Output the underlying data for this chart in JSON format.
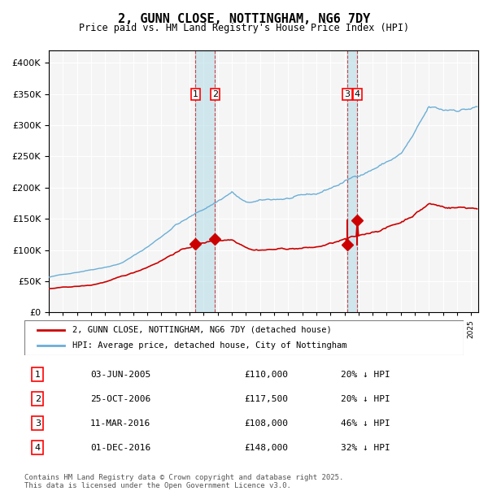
{
  "title": "2, GUNN CLOSE, NOTTINGHAM, NG6 7DY",
  "subtitle": "Price paid vs. HM Land Registry's House Price Index (HPI)",
  "footer": "Contains HM Land Registry data © Crown copyright and database right 2025.\nThis data is licensed under the Open Government Licence v3.0.",
  "legend_entries": [
    "2, GUNN CLOSE, NOTTINGHAM, NG6 7DY (detached house)",
    "HPI: Average price, detached house, City of Nottingham"
  ],
  "table_entries": [
    {
      "num": "1",
      "date": "03-JUN-2005",
      "price": "£110,000",
      "note": "20% ↓ HPI"
    },
    {
      "num": "2",
      "date": "25-OCT-2006",
      "price": "£117,500",
      "note": "20% ↓ HPI"
    },
    {
      "num": "3",
      "date": "11-MAR-2016",
      "price": "£108,000",
      "note": "46% ↓ HPI"
    },
    {
      "num": "4",
      "date": "01-DEC-2016",
      "price": "£148,000",
      "note": "32% ↓ HPI"
    }
  ],
  "sale_dates_decimal": [
    2005.42,
    2006.81,
    2016.19,
    2016.92
  ],
  "sale_prices": [
    110000,
    117500,
    108000,
    148000
  ],
  "vline_pairs": [
    [
      2005.42,
      2006.81
    ],
    [
      2016.19,
      2016.92
    ]
  ],
  "hpi_color": "#6baed6",
  "price_color": "#cc0000",
  "background_color": "#f5f5f5",
  "ylim": [
    0,
    420000
  ],
  "xlim_start": 1995.0,
  "xlim_end": 2025.5
}
